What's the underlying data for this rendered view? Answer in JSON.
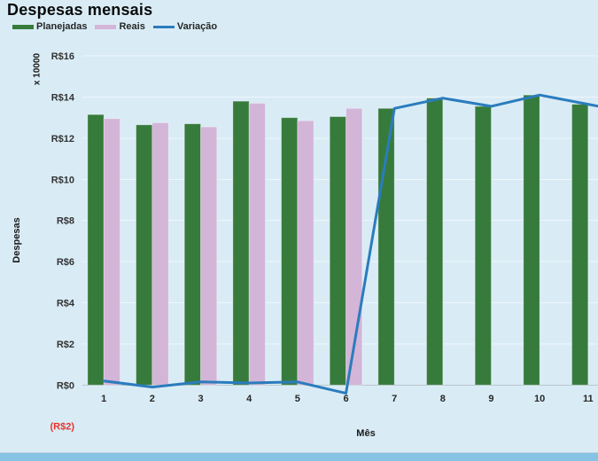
{
  "page": {
    "background": "#d9ecf6",
    "bottom_bar_color": "#87c3e4"
  },
  "legend": {
    "items": [
      {
        "label": "Planejadas",
        "color": "#377b3c",
        "marker": "bar"
      },
      {
        "label": "Reais",
        "color": "#d3b5d8",
        "marker": "bar"
      },
      {
        "label": "Variação",
        "color": "#2b7cbd",
        "marker": "line"
      }
    ]
  },
  "chart_data": {
    "type": "combo-bar-line",
    "title": "Despesas mensais",
    "xlabel": "Mês",
    "ylabel": "Despesas",
    "y_unit_label": "x 10000",
    "categories": [
      "1",
      "2",
      "3",
      "4",
      "5",
      "6",
      "7",
      "8",
      "9",
      "10",
      "11"
    ],
    "series": [
      {
        "name": "Planejadas",
        "type": "bar",
        "color": "#377b3c",
        "values": [
          13.15,
          12.65,
          12.7,
          13.8,
          13.0,
          13.05,
          13.45,
          13.95,
          13.55,
          14.1,
          13.65
        ]
      },
      {
        "name": "Reais",
        "type": "bar",
        "color": "#d3b5d8",
        "values": [
          12.95,
          12.75,
          12.55,
          13.7,
          12.85,
          13.45,
          null,
          null,
          null,
          null,
          null
        ]
      },
      {
        "name": "Variação",
        "type": "line",
        "color": "#2b7cbd",
        "values": [
          0.2,
          -0.1,
          0.15,
          0.1,
          0.15,
          -0.4,
          13.45,
          13.95,
          13.55,
          14.1,
          13.65
        ]
      }
    ],
    "ylim": [
      -2,
      16
    ],
    "yticks": [
      {
        "label": "R$16",
        "value": 16
      },
      {
        "label": "R$14",
        "value": 14
      },
      {
        "label": "R$12",
        "value": 12
      },
      {
        "label": "R$10",
        "value": 10
      },
      {
        "label": "R$8",
        "value": 8
      },
      {
        "label": "R$6",
        "value": 6
      },
      {
        "label": "R$4",
        "value": 4
      },
      {
        "label": "R$2",
        "value": 2
      },
      {
        "label": "R$0",
        "value": 0
      },
      {
        "label": "(R$2)",
        "value": -2,
        "color": "#e8332a"
      }
    ],
    "grid": true,
    "legend_position": "top-left",
    "axis_color": "#b9c6cd",
    "gridline_color": "rgba(255,255,255,0.55)",
    "tick_color": "#333333",
    "line_extends_right": true
  }
}
